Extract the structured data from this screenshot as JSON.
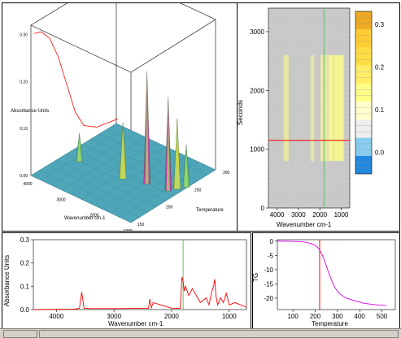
{
  "colors": {
    "spectrum": "#ff0000",
    "tg_curve": "#dd00dd",
    "marker_green": "#66bb66",
    "marker_red": "#ff0000",
    "plot_bg_gray": "#c8c8c8",
    "colorbar": [
      "#2288dd",
      "#88ccee",
      "#eeeeee",
      "#ffffcc",
      "#ffff88",
      "#ffee66",
      "#ffdd44",
      "#ffcc33",
      "#eeaa22"
    ]
  },
  "chart_data": [
    {
      "type": "surface",
      "x": [
        4000,
        3000,
        2000,
        1000
      ],
      "x_tick_labels": [
        "4000",
        "3000",
        "2000",
        "1000"
      ],
      "y_tick_labels": [
        "150",
        "200",
        "250",
        "300"
      ],
      "z_tick_labels": [
        "0.00",
        "0.10",
        "0.20",
        "0.30"
      ],
      "xlabel": "Wavenumber cm-1",
      "ylabel": "Temperature",
      "zlabel": "Absorbance Units",
      "peaks": [
        {
          "wavenumber": 1800,
          "temperature": 225,
          "absorbance": 0.24
        },
        {
          "wavenumber": 1250,
          "temperature": 230,
          "absorbance": 0.2
        },
        {
          "wavenumber": 1150,
          "temperature": 240,
          "absorbance": 0.15
        },
        {
          "wavenumber": 2350,
          "temperature": 215,
          "absorbance": 0.12
        },
        {
          "wavenumber": 3570,
          "temperature": 210,
          "absorbance": 0.06
        },
        {
          "wavenumber": 1050,
          "temperature": 250,
          "absorbance": 0.09
        }
      ]
    },
    {
      "type": "heatmap",
      "x_ticks": [
        4000,
        3000,
        2000,
        1000
      ],
      "xlim": [
        4400,
        600
      ],
      "y_ticks": [
        0,
        1000,
        2000,
        3000
      ],
      "ylim": [
        0,
        3400
      ],
      "xlabel": "Wavenumber cm-1",
      "ylabel": "Seconds",
      "marker_wavenumber": 1800,
      "marker_seconds": 1150,
      "colorbar_ticks": [
        "0.3",
        "0.2",
        "0.1",
        "0.0"
      ],
      "colorbar_range": [
        -0.05,
        0.33
      ]
    },
    {
      "type": "line",
      "x": [
        4400,
        3700,
        3600,
        3560,
        3520,
        3400,
        3000,
        2400,
        2380,
        2350,
        2320,
        2000,
        1850,
        1820,
        1800,
        1780,
        1760,
        1700,
        1640,
        1500,
        1400,
        1350,
        1300,
        1270,
        1250,
        1230,
        1200,
        1150,
        1100,
        1050,
        1000,
        900,
        700
      ],
      "y": [
        0.0,
        0.002,
        0.005,
        0.075,
        0.006,
        0.004,
        0.004,
        0.006,
        0.045,
        0.008,
        0.03,
        0.006,
        0.005,
        0.14,
        0.12,
        0.08,
        0.1,
        0.06,
        0.09,
        0.03,
        0.05,
        0.02,
        0.08,
        0.1,
        0.13,
        0.06,
        0.02,
        0.05,
        0.03,
        0.07,
        0.02,
        0.03,
        0.01
      ],
      "xlim": [
        4400,
        700
      ],
      "ylim": [
        0,
        0.3
      ],
      "x_ticks": [
        4000,
        3000,
        2000,
        1000
      ],
      "y_ticks": [
        0.0,
        0.1,
        0.2,
        0.3
      ],
      "x_tick_labels": [
        "4000",
        "3000",
        "2000",
        "1000"
      ],
      "y_tick_labels": [
        "0.0",
        "0.1",
        "0.2",
        "0.3"
      ],
      "xlabel": "Wavenumber cm-1",
      "ylabel": "Absorbance Units",
      "marker_x": 1800
    },
    {
      "type": "line",
      "x": [
        30,
        100,
        150,
        180,
        200,
        215,
        230,
        245,
        260,
        275,
        290,
        310,
        340,
        380,
        420,
        470,
        520
      ],
      "y": [
        0,
        -0.1,
        -0.3,
        -0.8,
        -1.5,
        -2.5,
        -4.5,
        -7.5,
        -11,
        -14,
        -16.5,
        -18.5,
        -20,
        -21,
        -21.8,
        -22.3,
        -22.6
      ],
      "xlim": [
        30,
        560
      ],
      "ylim": [
        -24,
        0.5
      ],
      "x_ticks": [
        100,
        200,
        300,
        400,
        500
      ],
      "y_ticks": [
        0,
        -5,
        -10,
        -15,
        -20
      ],
      "x_tick_labels": [
        "100",
        "200",
        "300",
        "400",
        "500"
      ],
      "y_tick_labels": [
        "0",
        "-5",
        "-10",
        "-15",
        "-20"
      ],
      "xlabel": "Temperature",
      "ylabel": "TG",
      "marker_x": 220
    }
  ]
}
